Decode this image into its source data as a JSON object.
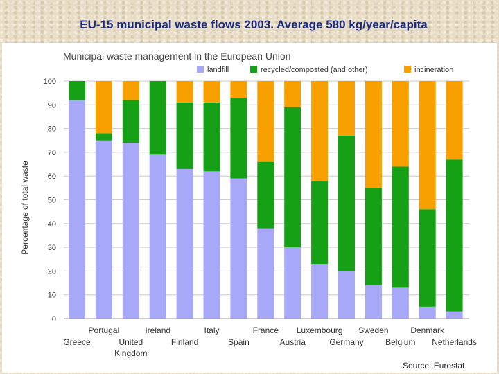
{
  "slide": {
    "title": "EU-15 municipal waste flows 2003. Average 580 kg/year/capita",
    "source": "Source: Eurostat"
  },
  "colors": {
    "landfill": "#a8a8f8",
    "recycled": "#16a016",
    "incineration": "#f7a000",
    "gridline": "#cccccc"
  },
  "chart_data": {
    "type": "bar",
    "stacked": true,
    "title": "Municipal waste management in the European Union",
    "ylabel": "Percentage of total waste",
    "xlabel": "",
    "ylim": [
      0,
      100
    ],
    "yticks": [
      0,
      10,
      20,
      30,
      40,
      50,
      60,
      70,
      80,
      90,
      100
    ],
    "grid": false,
    "legend_position": "top",
    "categories": [
      "Greece",
      "Portugal",
      "United Kingdom",
      "Ireland",
      "Finland",
      "Italy",
      "Spain",
      "France",
      "Austria",
      "Luxembourg",
      "Germany",
      "Sweden",
      "Belgium",
      "Denmark",
      "Netherlands"
    ],
    "category_label_lines": [
      [
        "Greece"
      ],
      [
        "Portugal"
      ],
      [
        "United",
        "Kingdom"
      ],
      [
        "Ireland"
      ],
      [
        "Finland"
      ],
      [
        "Italy"
      ],
      [
        "Spain"
      ],
      [
        "France"
      ],
      [
        "Austria"
      ],
      [
        "Luxembourg"
      ],
      [
        "Germany"
      ],
      [
        "Sweden"
      ],
      [
        "Belgium"
      ],
      [
        "Denmark"
      ],
      [
        "Netherlands"
      ]
    ],
    "series": [
      {
        "name": "landfill",
        "values": [
          92,
          75,
          74,
          69,
          63,
          62,
          59,
          38,
          30,
          23,
          20,
          14,
          13,
          5,
          3
        ]
      },
      {
        "name": "recycled/composted (and other)",
        "values": [
          8,
          3,
          18,
          31,
          28,
          29,
          34,
          28,
          59,
          35,
          57,
          41,
          51,
          41,
          64
        ]
      },
      {
        "name": "incineration",
        "values": [
          0,
          22,
          8,
          0,
          9,
          9,
          7,
          34,
          11,
          42,
          23,
          45,
          36,
          54,
          33
        ]
      }
    ]
  }
}
